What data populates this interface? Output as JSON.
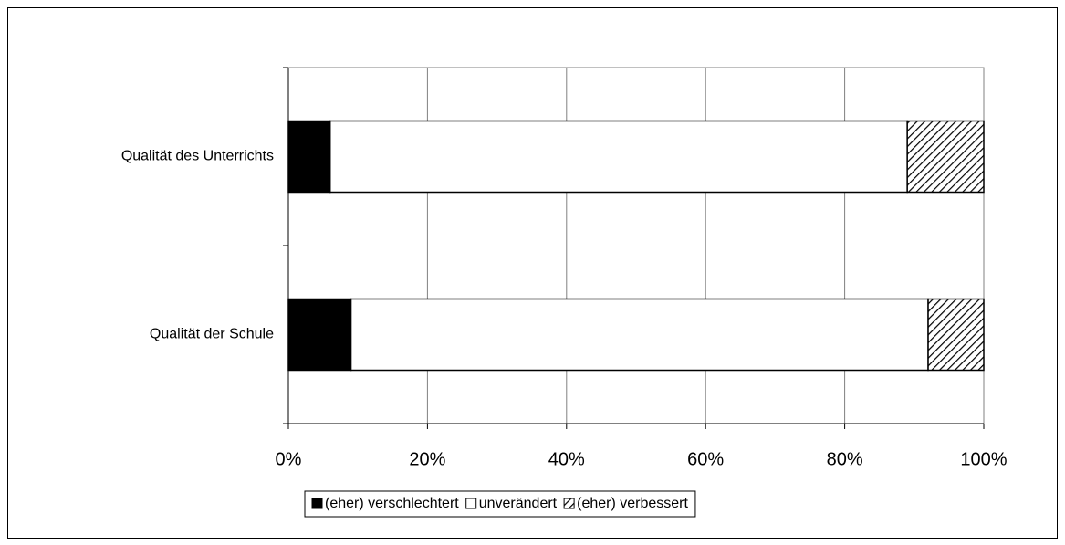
{
  "chart_data": {
    "type": "stacked-barh",
    "categories": [
      "Qualität des Unterrichts",
      "Qualität der Schule"
    ],
    "series": [
      {
        "name": "(eher) verschlechtert",
        "color": "#000000",
        "values": [
          6,
          9
        ]
      },
      {
        "name": "unverändert",
        "color": "#ffffff",
        "values": [
          83,
          83
        ]
      },
      {
        "name": "(eher) verbessert",
        "color": "#000000",
        "hatch": true,
        "values": [
          11,
          8
        ]
      }
    ],
    "xlim": [
      0,
      100
    ],
    "xticks": [
      {
        "value": 0,
        "label": "0%"
      },
      {
        "value": 20,
        "label": "20%"
      },
      {
        "value": 40,
        "label": "40%"
      },
      {
        "value": 60,
        "label": "60%"
      },
      {
        "value": 80,
        "label": "80%"
      },
      {
        "value": 100,
        "label": "100%"
      }
    ],
    "grid": true,
    "legend": "bottom"
  }
}
